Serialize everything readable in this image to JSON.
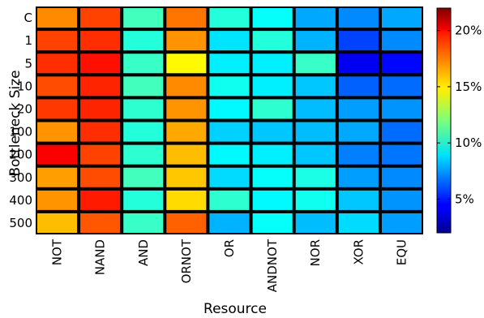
{
  "chart_data": {
    "type": "heatmap",
    "xlabel": "Resource",
    "ylabel": "Bottleneck Size",
    "x_categories": [
      "NOT",
      "NAND",
      "AND",
      "ORNOT",
      "OR",
      "ANDNOT",
      "NOR",
      "XOR",
      "EQU"
    ],
    "y_categories": [
      "C",
      "1",
      "5",
      "10",
      "20",
      "100",
      "200",
      "300",
      "400",
      "500"
    ],
    "values": [
      [
        16.8,
        18.2,
        10.8,
        17.2,
        10.2,
        9.6,
        7.8,
        7.2,
        7.8
      ],
      [
        18.2,
        18.6,
        10.2,
        16.6,
        9.0,
        10.2,
        8.0,
        5.8,
        7.2
      ],
      [
        18.6,
        19.2,
        10.6,
        14.6,
        9.2,
        9.2,
        10.6,
        4.2,
        4.6
      ],
      [
        18.0,
        18.8,
        10.8,
        16.8,
        9.8,
        9.2,
        8.4,
        6.4,
        6.6
      ],
      [
        18.4,
        18.8,
        10.4,
        16.6,
        9.4,
        10.4,
        8.2,
        7.6,
        7.4
      ],
      [
        16.6,
        18.6,
        10.2,
        16.2,
        8.6,
        8.4,
        8.2,
        7.8,
        6.6
      ],
      [
        19.6,
        18.2,
        10.4,
        15.8,
        9.4,
        9.2,
        8.4,
        7.0,
        6.8
      ],
      [
        16.4,
        18.0,
        10.8,
        15.6,
        8.8,
        9.6,
        10.0,
        7.6,
        7.2
      ],
      [
        16.6,
        19.0,
        10.2,
        15.2,
        10.4,
        9.4,
        9.8,
        8.4,
        7.4
      ],
      [
        15.8,
        17.8,
        10.6,
        17.6,
        8.0,
        9.6,
        8.2,
        8.8,
        7.6
      ]
    ],
    "colorbar": {
      "min": 2,
      "max": 22,
      "ticks": [
        5,
        10,
        15,
        20
      ],
      "tick_labels": [
        "5%",
        "10%",
        "15%",
        "20%"
      ],
      "colormap": "jet"
    },
    "grid": false,
    "legend": "none"
  }
}
